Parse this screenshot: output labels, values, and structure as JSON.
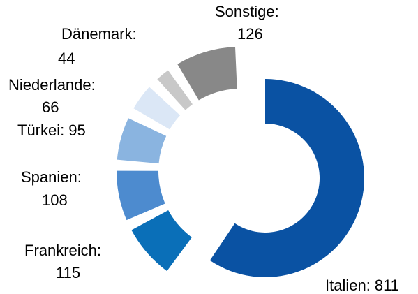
{
  "chart_data": {
    "type": "donut",
    "categories": [
      "Italien:",
      "Frankreich:",
      "Spanien:",
      "Türkei:",
      "Niederlande:",
      "Dänemark:",
      "Sonstige:"
    ],
    "values": [
      811,
      115,
      108,
      95,
      66,
      44,
      126
    ],
    "colors": [
      "#0a52a3",
      "#0a6fb8",
      "#4d8bcf",
      "#8ab4e0",
      "#dbe7f6",
      "#c8c8c8",
      "#888888"
    ]
  }
}
